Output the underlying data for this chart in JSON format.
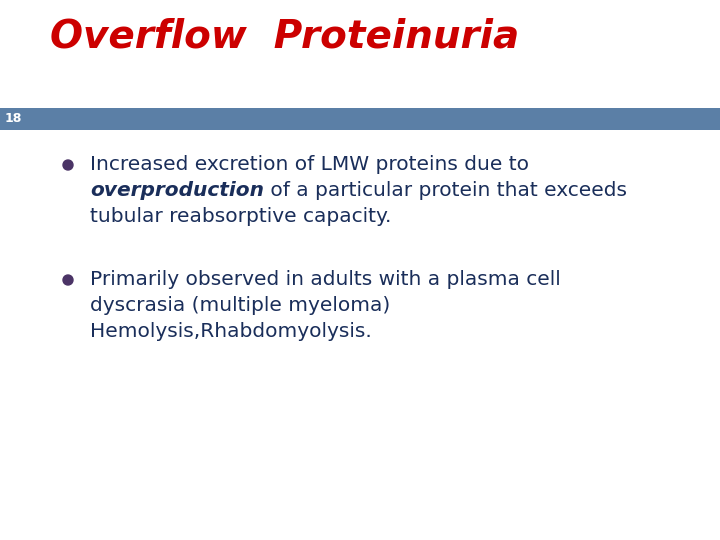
{
  "title": "Overflow  Proteinuria",
  "title_color": "#cc0000",
  "title_fontstyle": "italic",
  "title_fontsize": 28,
  "title_fontweight": "bold",
  "slide_number": "18",
  "slide_number_color": "#ffffff",
  "slide_number_fontsize": 9,
  "header_bar_color": "#5b7fa6",
  "background_color": "#ffffff",
  "bullet_color": "#4b3466",
  "text_color": "#1a2e5a",
  "text_fontsize": 14.5,
  "bullet1_line1": "Increased excretion of LMW proteins due to",
  "bullet1_bold": "overproduction",
  "bullet1_line2": " of a particular protein that exceeds",
  "bullet1_line3": "tubular reabsorptive capacity.",
  "bullet2_line1": "Primarily observed in adults with a plasma cell",
  "bullet2_line2": "dyscrasia (multiple myeloma)",
  "bullet2_line3": "Hemolysis,Rhabdomyolysis."
}
